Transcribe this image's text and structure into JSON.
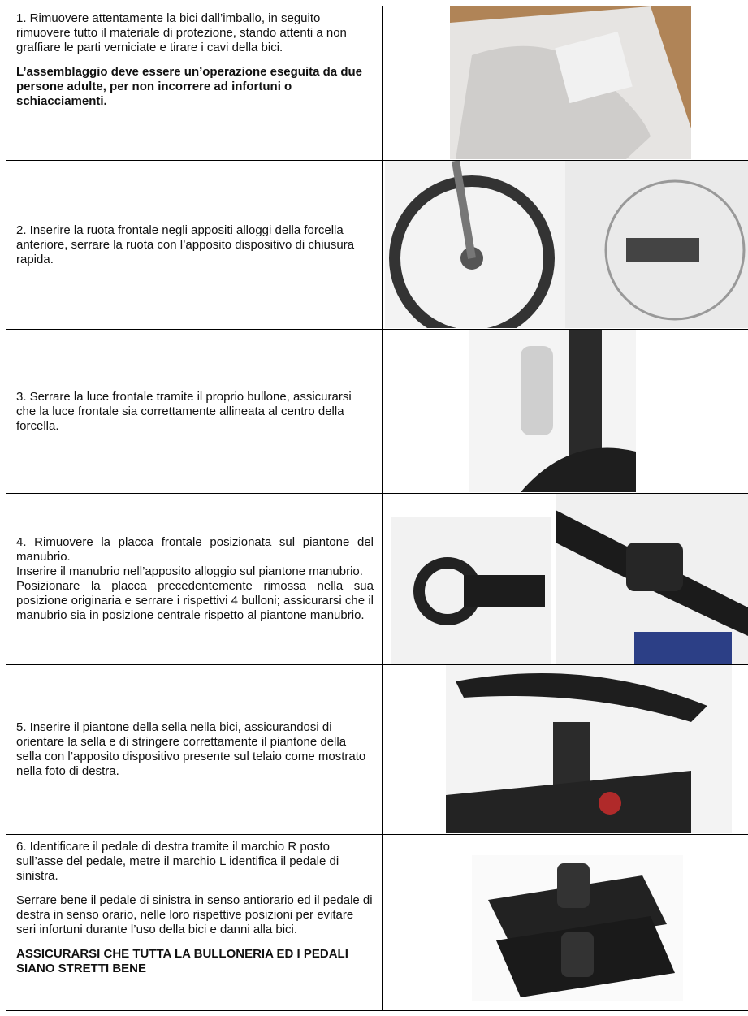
{
  "table": {
    "rows": [
      {
        "paragraphs": [
          "1. Rimuovere attentamente la bici dall’imballo, in seguito rimuovere tutto il materiale di protezione, stando attenti a non graffiare le parti verniciate e tirare i cavi della bici."
        ],
        "note": "L’assemblaggio deve essere un’operazione eseguita da due persone adulte, per non incorrere ad infortuni o schiacciamenti."
      },
      {
        "paragraphs": [
          "2. Inserire la ruota frontale negli appositi alloggi della forcella anteriore, serrare la ruota con l’apposito dispositivo di chiusura rapida."
        ]
      },
      {
        "paragraphs": [
          "3. Serrare la luce frontale tramite il proprio bullone, assicurarsi che la luce frontale sia correttamente allineata al centro della forcella."
        ]
      },
      {
        "paragraphs": [
          "4. Rimuovere la placca frontale posizionata sul piantone del manubrio.",
          "Inserire il manubrio nell’apposito alloggio sul piantone manubrio.",
          "Posizionare la placca precedentemente rimossa nella sua posizione originaria e serrare i rispettivi 4 bulloni; assicurarsi che il manubrio sia in posizione centrale rispetto al piantone manubrio."
        ]
      },
      {
        "paragraphs": [
          "5. Inserire il piantone della sella nella bici, assicurandosi di orientare la sella e di stringere correttamente il piantone della sella con l’apposito dispositivo presente sul telaio come mostrato nella foto di destra."
        ]
      },
      {
        "paragraphs": [
          "6. Identificare il pedale di destra tramite il marchio R posto sull’asse del pedale, metre il marchio L identifica il pedale di sinistra.",
          "Serrare bene il pedale di sinistra in senso antiorario ed il pedale di destra in senso orario, nelle loro rispettive posizioni per evitare seri infortuni durante l’uso della bici e danni alla bici."
        ],
        "note": "ASSICURARSI CHE TUTTA LA BULLONERIA ED I PEDALI SIANO STRETTI BENE"
      }
    ]
  }
}
